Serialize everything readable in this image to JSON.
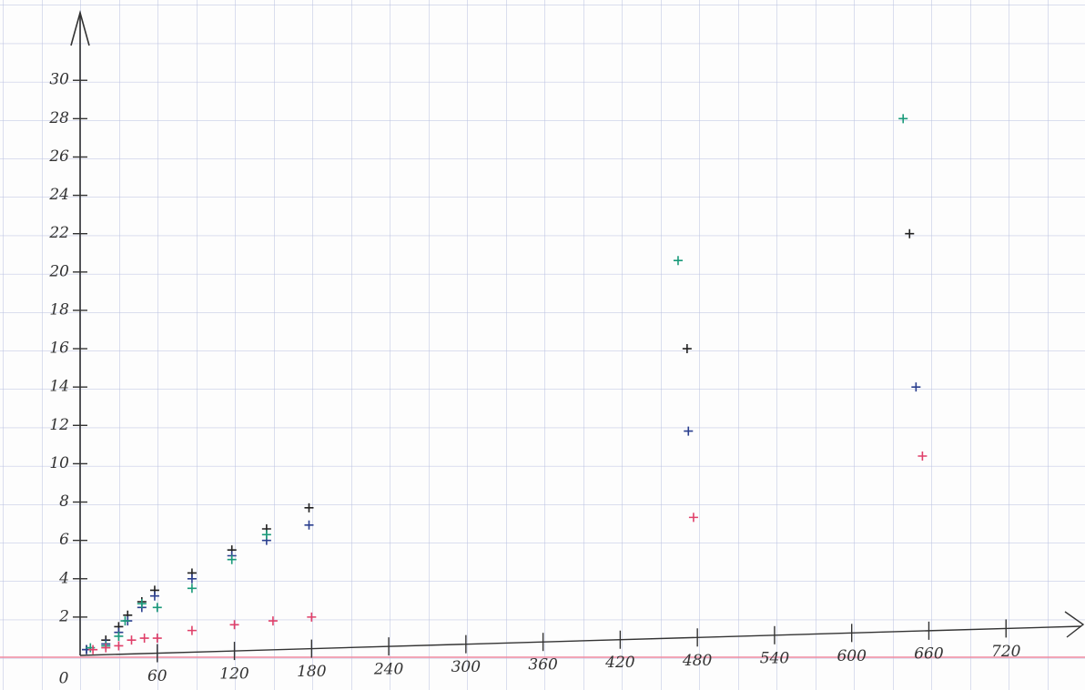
{
  "chart_data": {
    "type": "scatter",
    "xlim": [
      0,
      780
    ],
    "ylim": [
      0,
      34
    ],
    "xticks": [
      0,
      60,
      120,
      180,
      240,
      300,
      360,
      420,
      480,
      540,
      600,
      660,
      720
    ],
    "yticks": [
      2,
      4,
      6,
      8,
      10,
      12,
      14,
      16,
      18,
      20,
      22,
      24,
      26,
      28,
      30
    ],
    "series": [
      {
        "color": "#222222",
        "x": [
          5,
          20,
          30,
          37,
          48,
          58,
          87,
          118,
          145,
          178,
          472,
          645
        ],
        "values": [
          0.3,
          0.8,
          1.5,
          2.1,
          2.8,
          3.4,
          4.3,
          5.5,
          6.6,
          7.7,
          16,
          22
        ]
      },
      {
        "color": "#2b3f8f",
        "x": [
          5,
          20,
          30,
          37,
          48,
          58,
          87,
          118,
          145,
          178,
          473,
          650
        ],
        "values": [
          0.3,
          0.6,
          1.2,
          1.8,
          2.5,
          3.1,
          4.0,
          5.2,
          6.0,
          6.8,
          11.7,
          14
        ]
      },
      {
        "color": "#1a9a7a",
        "x": [
          8,
          20,
          30,
          35,
          48,
          60,
          87,
          118,
          145,
          465,
          640
        ],
        "values": [
          0.4,
          0.5,
          1.0,
          1.8,
          2.7,
          2.5,
          3.5,
          5.0,
          6.3,
          20.6,
          28
        ]
      },
      {
        "color": "#e0406a",
        "x": [
          10,
          20,
          30,
          40,
          50,
          60,
          87,
          120,
          150,
          180,
          477,
          655
        ],
        "values": [
          0.3,
          0.4,
          0.5,
          0.8,
          0.9,
          0.9,
          1.3,
          1.6,
          1.8,
          2.0,
          7.2,
          10.4
        ]
      }
    ]
  }
}
